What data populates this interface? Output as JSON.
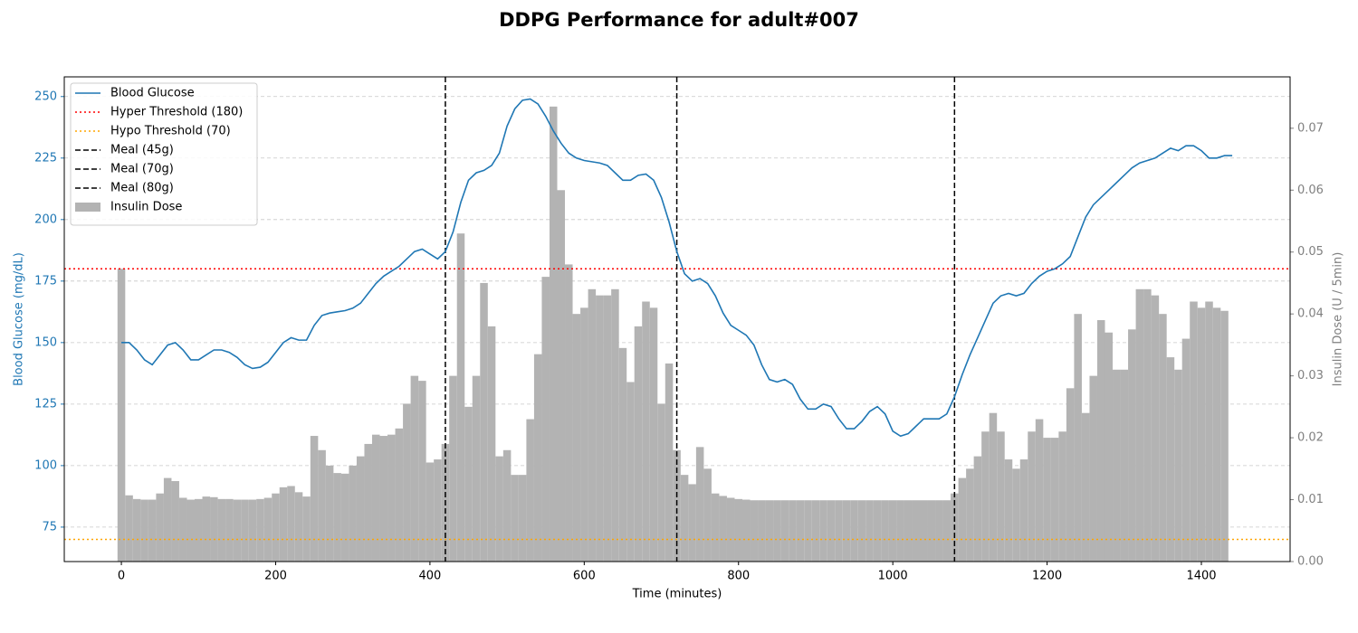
{
  "chart_data": {
    "type": "line-bar-dual-axis",
    "title": "DDPG Performance for adult#007",
    "xlabel": "Time (minutes)",
    "ylabel": "Blood Glucose (mg/dL)",
    "y2label": "Insulin Dose (U / 5min)",
    "xlim": [
      -74,
      1515
    ],
    "ylim": [
      61,
      258
    ],
    "y2lim": [
      0,
      0.0783
    ],
    "xticks": [
      0,
      200,
      400,
      600,
      800,
      1000,
      1200,
      1400
    ],
    "yticks": [
      75,
      100,
      125,
      150,
      175,
      200,
      225,
      250
    ],
    "y2ticks": [
      {
        "value": 0,
        "label": "0.00"
      },
      0.01,
      0.02,
      0.03,
      0.04,
      0.05,
      0.06,
      0.07
    ],
    "grid": true,
    "legend": "upper left",
    "x": [
      0,
      10,
      20,
      30,
      40,
      50,
      60,
      70,
      80,
      90,
      100,
      110,
      120,
      130,
      140,
      150,
      160,
      170,
      180,
      190,
      200,
      210,
      220,
      230,
      240,
      250,
      260,
      270,
      280,
      290,
      300,
      310,
      320,
      330,
      340,
      350,
      360,
      370,
      380,
      390,
      400,
      410,
      420,
      430,
      440,
      450,
      460,
      470,
      480,
      490,
      500,
      510,
      520,
      530,
      540,
      550,
      560,
      570,
      580,
      590,
      600,
      610,
      620,
      630,
      640,
      650,
      660,
      670,
      680,
      690,
      700,
      710,
      720,
      730,
      740,
      750,
      760,
      770,
      780,
      790,
      800,
      810,
      820,
      830,
      840,
      850,
      860,
      870,
      880,
      890,
      900,
      910,
      920,
      930,
      940,
      950,
      960,
      970,
      980,
      990,
      1000,
      1010,
      1020,
      1030,
      1040,
      1050,
      1060,
      1070,
      1080,
      1090,
      1100,
      1110,
      1120,
      1130,
      1140,
      1150,
      1160,
      1170,
      1180,
      1190,
      1200,
      1210,
      1220,
      1230,
      1240,
      1250,
      1260,
      1270,
      1280,
      1290,
      1300,
      1310,
      1320,
      1330,
      1340,
      1350,
      1360,
      1370,
      1380,
      1390,
      1400,
      1410,
      1420,
      1430,
      1440
    ],
    "series": [
      {
        "name": "Blood Glucose",
        "color": "#1f77b4",
        "axis": "y",
        "values": [
          150,
          150,
          147,
          143,
          141,
          145,
          149,
          150,
          147,
          143,
          143,
          145,
          147,
          147,
          146,
          144,
          141,
          139.5,
          140,
          142,
          146,
          150,
          152,
          151,
          151,
          157,
          161,
          162,
          162.5,
          163,
          164,
          166,
          170,
          174,
          177,
          179,
          181,
          184,
          187,
          188,
          186,
          184,
          187,
          195,
          207,
          216,
          219,
          220,
          222,
          227,
          238,
          245,
          248.5,
          249,
          247,
          242,
          236,
          231,
          227,
          225,
          224,
          223.5,
          223,
          222,
          219,
          216,
          216,
          218,
          218.5,
          216,
          209,
          199,
          187,
          178,
          175,
          176,
          174,
          169,
          162,
          157,
          155,
          153,
          149,
          141,
          135,
          134,
          135,
          133,
          127,
          123,
          123,
          125,
          124,
          119,
          115,
          115,
          118,
          122,
          124,
          121,
          114,
          112,
          113,
          116,
          119,
          119,
          119,
          121,
          128,
          137,
          145,
          152,
          159,
          166,
          169,
          170,
          169,
          170,
          174,
          177,
          179,
          180,
          182,
          185,
          193,
          201,
          206,
          209,
          212,
          215,
          218,
          221,
          223,
          224,
          225,
          227,
          229,
          228,
          230,
          230,
          228,
          225,
          225,
          226,
          226
        ]
      },
      {
        "name": "Insulin Dose",
        "color": "#b3b3b3",
        "axis": "y2",
        "values": [
          0.0473,
          0.0107,
          0.0101,
          0.01,
          0.01,
          0.011,
          0.0135,
          0.013,
          0.0103,
          0.01,
          0.0101,
          0.0105,
          0.0104,
          0.0101,
          0.0101,
          0.01,
          0.01,
          0.01,
          0.0101,
          0.0103,
          0.011,
          0.012,
          0.0122,
          0.0112,
          0.0105,
          0.0203,
          0.018,
          0.0155,
          0.0143,
          0.0142,
          0.0155,
          0.017,
          0.019,
          0.0205,
          0.0203,
          0.0205,
          0.0215,
          0.0255,
          0.03,
          0.0292,
          0.016,
          0.0165,
          0.019,
          0.03,
          0.053,
          0.025,
          0.03,
          0.045,
          0.038,
          0.017,
          0.018,
          0.014,
          0.014,
          0.023,
          0.0335,
          0.046,
          0.0735,
          0.06,
          0.048,
          0.04,
          0.041,
          0.044,
          0.043,
          0.043,
          0.044,
          0.0345,
          0.029,
          0.038,
          0.042,
          0.041,
          0.0255,
          0.032,
          0.018,
          0.014,
          0.0125,
          0.0185,
          0.015,
          0.011,
          0.0106,
          0.0103,
          0.0101,
          0.01,
          0.0099,
          0.0099,
          0.0099,
          0.0099,
          0.0099,
          0.0099,
          0.0099,
          0.0099,
          0.0099,
          0.0099,
          0.0099,
          0.0099,
          0.0099,
          0.0099,
          0.0099,
          0.0099,
          0.0099,
          0.0099,
          0.0099,
          0.0099,
          0.0099,
          0.0099,
          0.0099,
          0.0099,
          0.0099,
          0.0099,
          0.011,
          0.0135,
          0.015,
          0.017,
          0.021,
          0.024,
          0.021,
          0.0165,
          0.015,
          0.0165,
          0.021,
          0.023,
          0.02,
          0.02,
          0.021,
          0.028,
          0.04,
          0.024,
          0.03,
          0.039,
          0.037,
          0.031,
          0.031,
          0.0375,
          0.044,
          0.044,
          0.043,
          0.04,
          0.033,
          0.031,
          0.036,
          0.042,
          0.041,
          0.042,
          0.041,
          0.0405,
          null
        ]
      }
    ],
    "hlines": [
      {
        "name": "Hyper Threshold (180)",
        "value": 180,
        "color": "red"
      },
      {
        "name": "Hypo Threshold (70)",
        "value": 70,
        "color": "orange"
      }
    ],
    "vlines": [
      {
        "name": "Meal (45g)",
        "value": 420,
        "color": "black"
      },
      {
        "name": "Meal (70g)",
        "value": 720,
        "color": "black"
      },
      {
        "name": "Meal (80g)",
        "value": 1080,
        "color": "black"
      }
    ]
  }
}
